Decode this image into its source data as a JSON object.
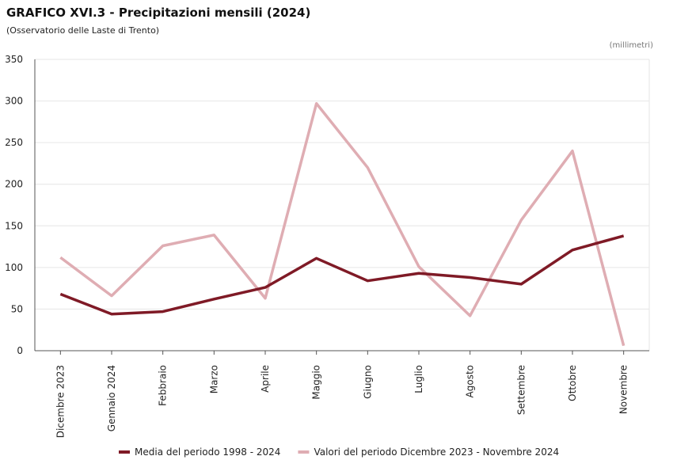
{
  "chart_data": {
    "type": "line",
    "title": "GRAFICO XVI.3 - Precipitazioni mensili (2024)",
    "subtitle": "(Osservatorio delle Laste di Trento)",
    "y_unit": "(millimetri)",
    "categories": [
      "Dicembre 2023",
      "Gennaio 2024",
      "Febbraio",
      "Marzo",
      "Aprile",
      "Maggio",
      "Giugno",
      "Luglio",
      "Agosto",
      "Settembre",
      "Ottobre",
      "Novembre"
    ],
    "series": [
      {
        "name": "Media del periodo 1998 - 2024",
        "color": "#7f1a26",
        "values": [
          68,
          44,
          47,
          62,
          76,
          111,
          84,
          93,
          88,
          80,
          121,
          138
        ]
      },
      {
        "name": "Valori del periodo Dicembre 2023 - Novembre 2024",
        "color": "#dfadb3",
        "values": [
          112,
          66,
          126,
          139,
          63,
          297,
          220,
          101,
          42,
          157,
          240,
          6
        ]
      }
    ],
    "ylim": [
      0,
      350
    ],
    "yticks": [
      0,
      50,
      100,
      150,
      200,
      250,
      300,
      350
    ],
    "grid": true,
    "legend": "bottom"
  }
}
